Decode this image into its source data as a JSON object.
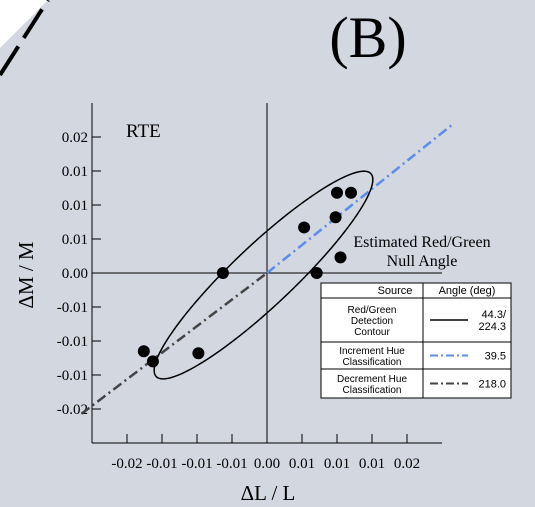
{
  "chart_data": {
    "type": "scatter",
    "panel_label": "(B)",
    "subject_label": "RTE",
    "xlabel": "ΔL / L",
    "ylabel": "ΔM / M",
    "xlim": [
      -0.025,
      0.025
    ],
    "ylim": [
      -0.025,
      0.025
    ],
    "x_ticks": [
      -0.02,
      -0.015,
      -0.01,
      -0.005,
      0.0,
      0.005,
      0.01,
      0.015,
      0.02
    ],
    "x_tick_labels": [
      "-0.02",
      "-0.01",
      "-0.01",
      "-0.01",
      "0.00",
      "0.01",
      "0.01",
      "0.01",
      "0.02"
    ],
    "y_ticks": [
      0.02,
      0.015,
      0.01,
      0.005,
      0.0,
      -0.005,
      -0.01,
      -0.015,
      -0.02
    ],
    "y_tick_labels": [
      "0.02",
      "0.01",
      "0.01",
      "0.01",
      "0.00",
      "-0.01",
      "-0.01",
      "-0.01",
      "-0.02"
    ],
    "points": [
      {
        "x": -0.0176,
        "y": -0.0115
      },
      {
        "x": -0.0163,
        "y": -0.013
      },
      {
        "x": -0.0098,
        "y": -0.0118
      },
      {
        "x": -0.0063,
        "y": 0.0
      },
      {
        "x": 0.0071,
        "y": 0.0
      },
      {
        "x": 0.0053,
        "y": 0.0067
      },
      {
        "x": 0.0105,
        "y": 0.0023
      },
      {
        "x": 0.01,
        "y": 0.0118
      },
      {
        "x": 0.012,
        "y": 0.0118
      },
      {
        "x": 0.0098,
        "y": 0.0082
      }
    ],
    "contour": {
      "center": [
        -0.0005,
        -0.0003
      ],
      "angle_deg": 44.3,
      "semi_major": 0.0214,
      "semi_minor": 0.0044
    },
    "increment_line": {
      "angle_deg": 39.5,
      "x_range": [
        0.0,
        0.0265
      ],
      "color": "#5b8def"
    },
    "decrement_line": {
      "angle_deg": 218.0,
      "x_range": [
        -0.0265,
        0.0
      ],
      "color": "#444444"
    },
    "annotation": {
      "title_line1": "Estimated Red/Green",
      "title_line2": "Null Angle"
    },
    "legend": {
      "header_source": "Source",
      "header_angle": "Angle (deg)",
      "rows": [
        {
          "source": [
            "Red/Green",
            "Detection",
            "Contour"
          ],
          "style": "solid",
          "color": "#000000",
          "angle_lines": [
            "44.3/",
            "224.3"
          ]
        },
        {
          "source": [
            "Increment Hue",
            "Classification"
          ],
          "style": "dashdot",
          "color": "#5b8def",
          "angle_lines": [
            "39.5"
          ]
        },
        {
          "source": [
            "Decrement Hue",
            "Classification"
          ],
          "style": "dashdot",
          "color": "#444444",
          "angle_lines": [
            "218.0"
          ]
        }
      ]
    }
  }
}
